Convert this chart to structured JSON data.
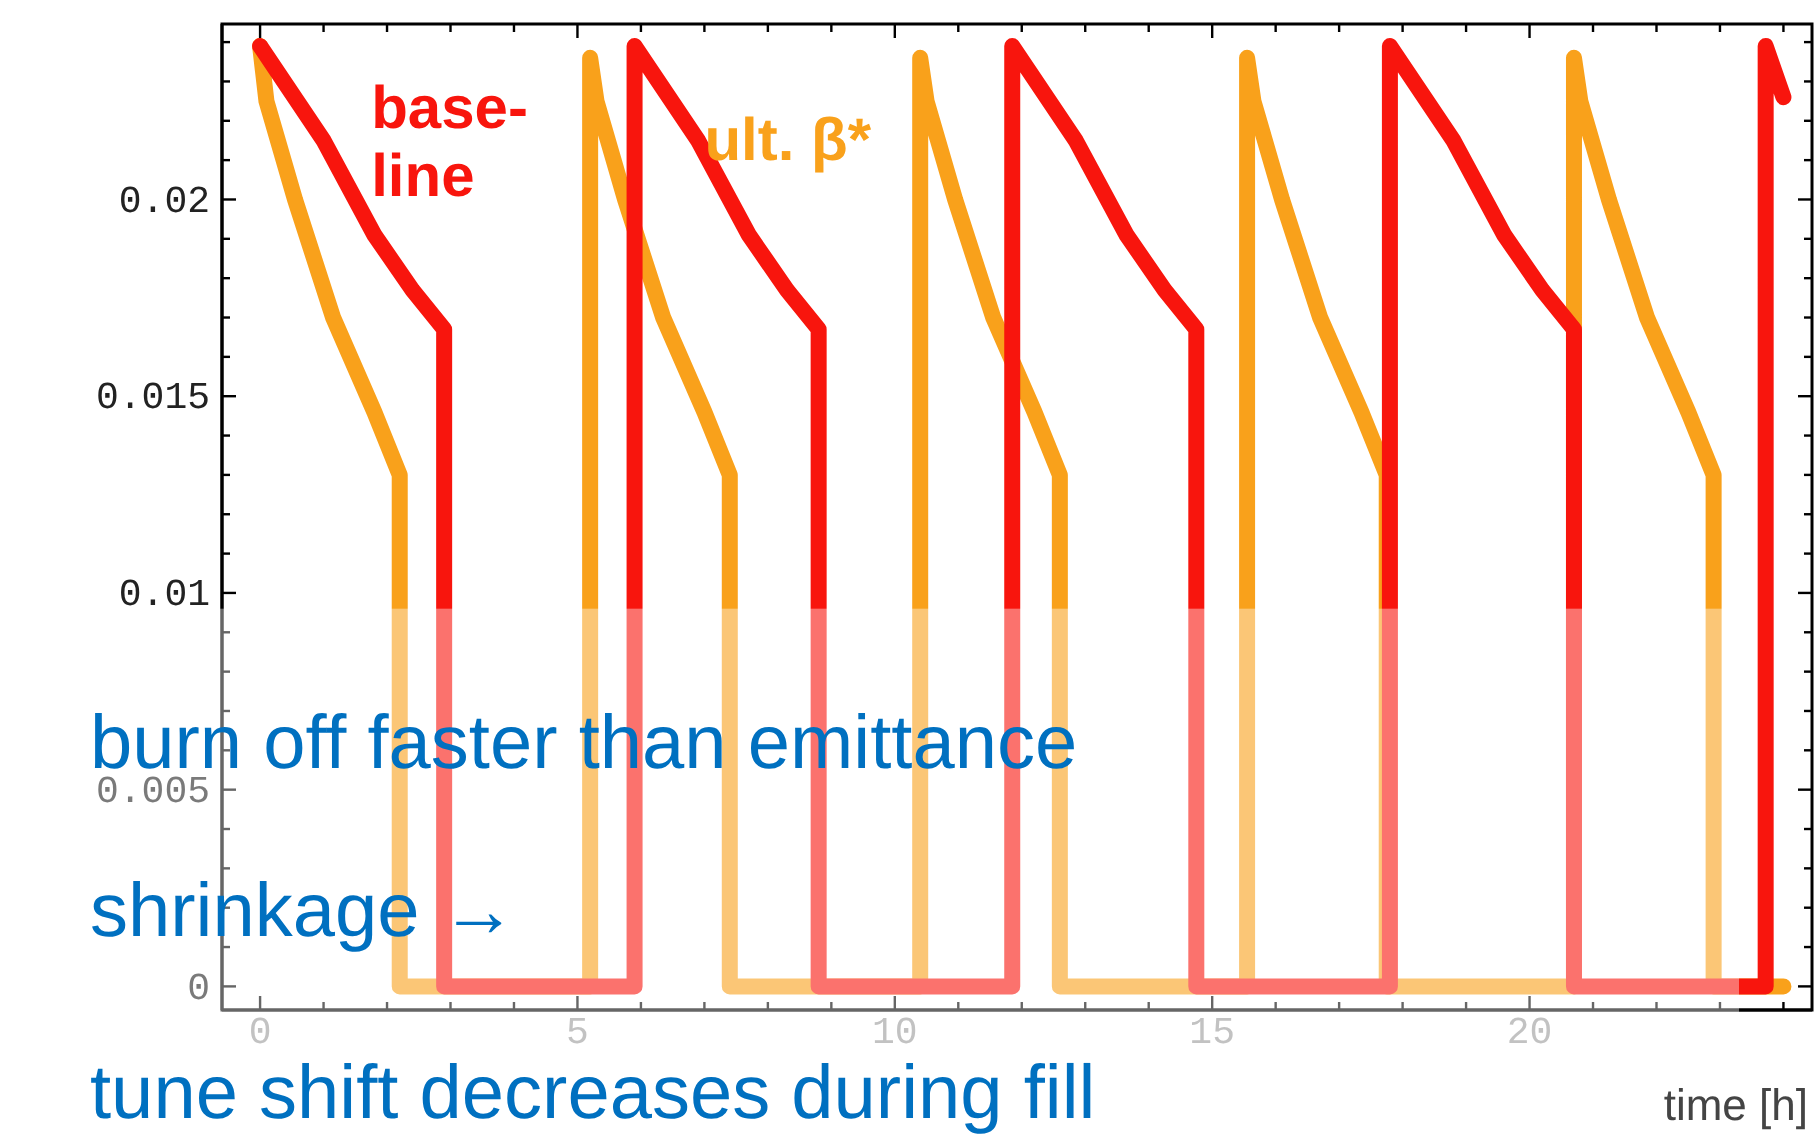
{
  "chart_data": {
    "type": "line",
    "xlabel": "time [h]",
    "xlim": [
      -0.6,
      24.45
    ],
    "ylim": [
      -0.0006,
      0.02446
    ],
    "xticks": [
      0,
      {
        "value": 1,
        "label": null
      },
      {
        "value": 2,
        "label": null
      },
      {
        "value": 3,
        "label": null
      },
      {
        "value": 4,
        "label": null
      },
      5,
      {
        "value": 6,
        "label": null
      },
      {
        "value": 7,
        "label": null
      },
      {
        "value": 8,
        "label": null
      },
      {
        "value": 9,
        "label": null
      },
      10,
      {
        "value": 11,
        "label": null
      },
      {
        "value": 12,
        "label": null
      },
      {
        "value": 13,
        "label": null
      },
      {
        "value": 14,
        "label": null
      },
      15,
      {
        "value": 16,
        "label": null
      },
      {
        "value": 17,
        "label": null
      },
      {
        "value": 18,
        "label": null
      },
      {
        "value": 19,
        "label": null
      },
      20,
      {
        "value": 21,
        "label": null
      },
      {
        "value": 22,
        "label": null
      },
      {
        "value": 23,
        "label": null
      },
      {
        "value": 24,
        "label": null
      }
    ],
    "yticks": [
      0,
      {
        "value": 0.001,
        "label": null
      },
      {
        "value": 0.002,
        "label": null
      },
      {
        "value": 0.003,
        "label": null
      },
      {
        "value": 0.004,
        "label": null
      },
      0.005,
      {
        "value": 0.006,
        "label": null
      },
      {
        "value": 0.007,
        "label": null
      },
      {
        "value": 0.008,
        "label": null
      },
      {
        "value": 0.009,
        "label": null
      },
      0.01,
      {
        "value": 0.011,
        "label": null
      },
      {
        "value": 0.012,
        "label": null
      },
      {
        "value": 0.013,
        "label": null
      },
      {
        "value": 0.014,
        "label": null
      },
      0.015,
      {
        "value": 0.016,
        "label": null
      },
      {
        "value": 0.017,
        "label": null
      },
      {
        "value": 0.018,
        "label": null
      },
      {
        "value": 0.019,
        "label": null
      },
      0.02,
      {
        "value": 0.021,
        "label": null
      },
      {
        "value": 0.022,
        "label": null
      },
      {
        "value": 0.023,
        "label": null
      },
      {
        "value": 0.024,
        "label": null
      }
    ],
    "line_style": "solid",
    "marker": "none",
    "grid": false,
    "series": [
      {
        "name": "ult. β*",
        "color": "#f9a11b",
        "x": [
          0,
          0.1,
          0.55,
          1.15,
          1.8,
          2.2,
          2.2,
          5.2,
          5.2,
          5.3,
          5.75,
          6.35,
          7.0,
          7.4,
          7.4,
          10.4,
          10.4,
          10.5,
          10.95,
          11.55,
          12.2,
          12.6,
          12.6,
          15.55,
          15.55,
          15.65,
          16.1,
          16.7,
          17.35,
          17.75,
          17.75,
          20.7,
          20.7,
          20.8,
          21.25,
          21.85,
          22.5,
          22.9,
          22.9,
          24.0
        ],
        "values": [
          0.0239,
          0.0225,
          0.02,
          0.017,
          0.0146,
          0.013,
          0,
          0,
          0.0236,
          0.0225,
          0.02,
          0.017,
          0.0146,
          0.013,
          0,
          0,
          0.0236,
          0.0225,
          0.02,
          0.017,
          0.0146,
          0.013,
          0,
          0,
          0.0236,
          0.0225,
          0.02,
          0.017,
          0.0146,
          0.013,
          0,
          0,
          0.0236,
          0.0225,
          0.02,
          0.017,
          0.0146,
          0.013,
          0,
          0
        ]
      },
      {
        "name": "base-line",
        "color": "#f8150d",
        "x": [
          0,
          0.5,
          1.0,
          1.8,
          2.4,
          2.9,
          2.9,
          5.9,
          5.9,
          6.4,
          6.9,
          7.7,
          8.3,
          8.8,
          8.8,
          11.85,
          11.85,
          12.35,
          12.85,
          13.65,
          14.25,
          14.75,
          14.75,
          17.8,
          17.8,
          18.3,
          18.8,
          19.6,
          20.2,
          20.7,
          20.7,
          23.72,
          23.72,
          24.0
        ],
        "values": [
          0.0239,
          0.0227,
          0.0215,
          0.0191,
          0.0177,
          0.0167,
          0,
          0,
          0.0239,
          0.0227,
          0.0215,
          0.0191,
          0.0177,
          0.0167,
          0,
          0,
          0.0239,
          0.0227,
          0.0215,
          0.0191,
          0.0177,
          0.0167,
          0,
          0,
          0.0239,
          0.0227,
          0.0215,
          0.0191,
          0.0177,
          0.0167,
          0,
          0,
          0.0239,
          0.0226
        ]
      }
    ],
    "annotations": [
      "burn off faster than emittance shrinkage →",
      "tune shift decreases during fill"
    ]
  }
}
